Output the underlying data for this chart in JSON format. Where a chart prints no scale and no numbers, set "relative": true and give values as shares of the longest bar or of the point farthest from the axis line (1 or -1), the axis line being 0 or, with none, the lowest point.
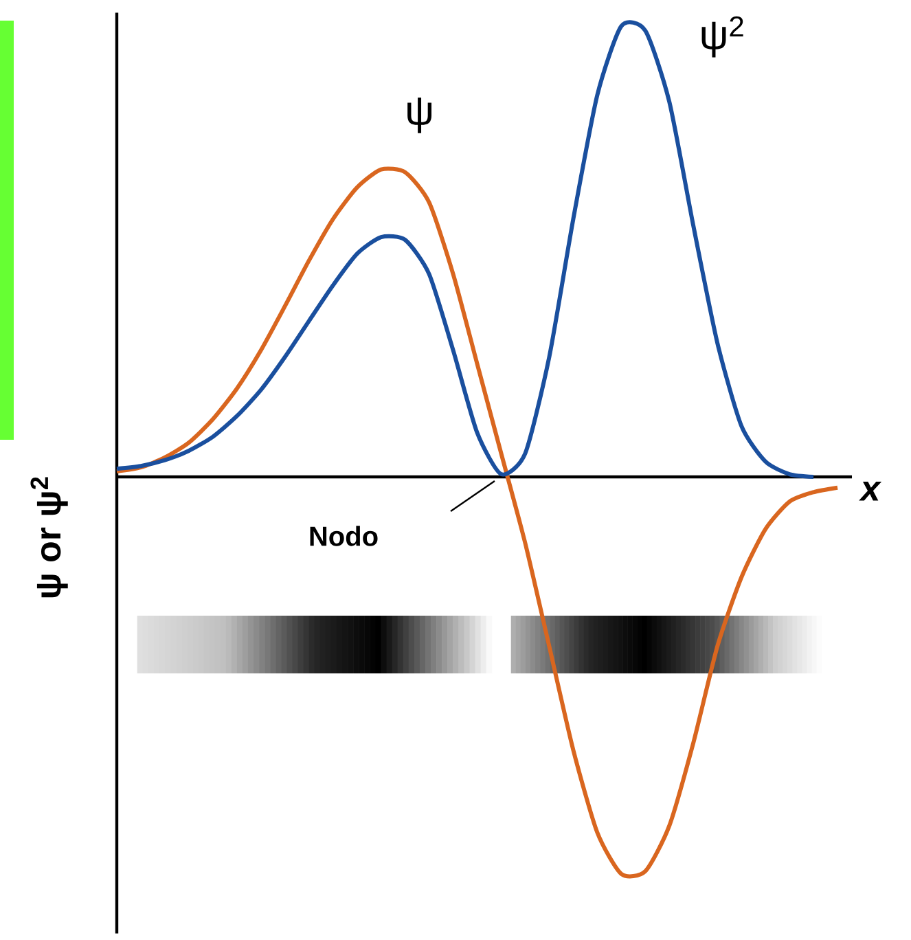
{
  "chart_data": {
    "type": "line",
    "xlabel": "x",
    "ylabel": "ψ or ψ$^{2}$",
    "annotations": [
      "Nodo"
    ],
    "relative": true,
    "categories": [
      null,
      null,
      null,
      null,
      null,
      null,
      null,
      null,
      null,
      null,
      null,
      null,
      null,
      null,
      null,
      null,
      null,
      null,
      null,
      null,
      null,
      null,
      null,
      null,
      null,
      null,
      null,
      null,
      null,
      null,
      null
    ],
    "series": [
      {
        "name": "ψ",
        "color": "#d9661f",
        "values": [
          0.012,
          0.021,
          0.043,
          0.076,
          0.128,
          0.196,
          0.281,
          0.379,
          0.48,
          0.572,
          0.642,
          0.682,
          0.676,
          0.609,
          0.45,
          0.251,
          0.052,
          -0.147,
          -0.376,
          -0.606,
          -0.789,
          -0.881,
          -0.875,
          -0.774,
          -0.59,
          -0.376,
          -0.223,
          -0.116,
          -0.055,
          -0.034,
          -0.024
        ]
      },
      {
        "name": "ψ$^{2}$",
        "color": "#1a4f9e",
        "values": [
          0.018,
          0.024,
          0.037,
          0.058,
          0.089,
          0.135,
          0.193,
          0.266,
          0.346,
          0.425,
          0.495,
          0.532,
          0.526,
          0.45,
          0.281,
          0.098,
          0.006,
          0.052,
          0.266,
          0.572,
          0.847,
          1,
          0.99,
          0.832,
          0.557,
          0.297,
          0.113,
          0.034,
          0.006,
          0,
          null
        ]
      }
    ]
  }
}
